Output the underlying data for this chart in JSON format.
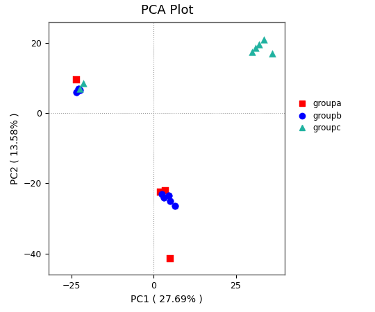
{
  "title": "PCA Plot",
  "xlabel": "PC1 ( 27.69% )",
  "ylabel": "PC2 ( 13.58% )",
  "xlim": [
    -32,
    40
  ],
  "ylim": [
    -46,
    26
  ],
  "xticks": [
    -25,
    0,
    25
  ],
  "yticks": [
    -40,
    -20,
    0,
    20
  ],
  "groupa": {
    "color": "#FF0000",
    "marker": "s",
    "label": "groupa",
    "points": [
      [
        -23.5,
        9.5
      ],
      [
        2.0,
        -22.5
      ],
      [
        3.5,
        -22.0
      ],
      [
        5.0,
        -41.5
      ]
    ]
  },
  "groupb": {
    "color": "#0000FF",
    "marker": "o",
    "label": "groupb",
    "points": [
      [
        -23.0,
        7.0
      ],
      [
        -23.5,
        6.0
      ],
      [
        -22.5,
        6.5
      ],
      [
        2.5,
        -23.0
      ],
      [
        3.0,
        -24.0
      ],
      [
        5.0,
        -25.0
      ],
      [
        6.5,
        -26.5
      ],
      [
        4.5,
        -23.5
      ]
    ]
  },
  "groupc": {
    "color": "#20B2A0",
    "marker": "^",
    "label": "groupc",
    "points": [
      [
        -21.5,
        8.5
      ],
      [
        -22.5,
        7.0
      ],
      [
        30.0,
        17.5
      ],
      [
        31.0,
        18.5
      ],
      [
        32.0,
        19.5
      ],
      [
        33.5,
        21.0
      ],
      [
        36.0,
        17.0
      ]
    ]
  },
  "background_color": "#ffffff",
  "grid_color": "#999999",
  "marker_size": 7,
  "title_fontsize": 13,
  "axis_fontsize": 10,
  "tick_fontsize": 9
}
